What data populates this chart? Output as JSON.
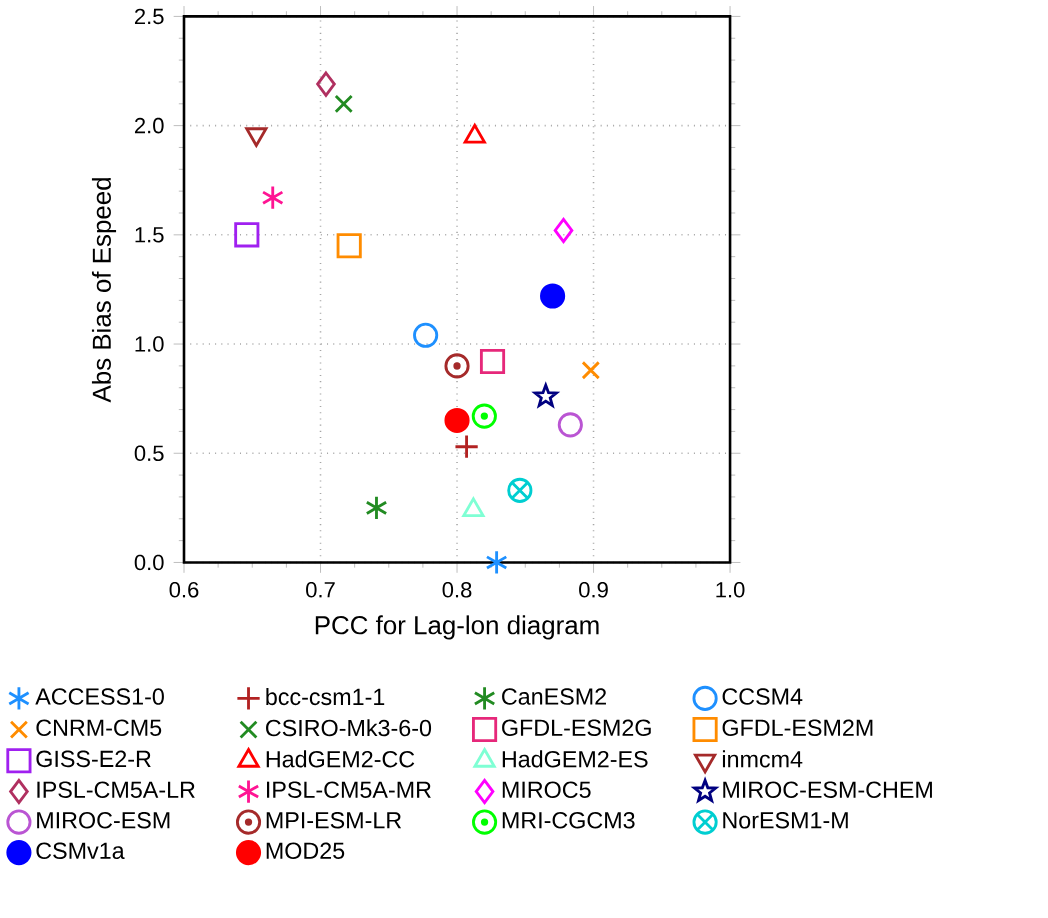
{
  "chart_data": {
    "type": "scatter",
    "xlabel": "PCC for Lag-lon diagram",
    "ylabel": "Abs Bias of Espeed",
    "xlim": [
      0.6,
      1.0
    ],
    "ylim": [
      0,
      2.5
    ],
    "xticks": [
      0.6,
      0.7,
      0.8,
      0.9,
      {
        "value": 1.0,
        "label": "1.0"
      }
    ],
    "yticks": [
      {
        "value": 0,
        "label": "0.0"
      },
      0.5,
      {
        "value": 1.0,
        "label": "1.0"
      },
      1.5,
      {
        "value": 2.0,
        "label": "2.0"
      },
      2.5
    ],
    "grid": true,
    "legend": "bottom",
    "series": [
      {
        "name": "ACCESS1-0",
        "color": "#1e90ff",
        "x": [
          0.829
        ],
        "values": [
          0.0
        ]
      },
      {
        "name": "bcc-csm1-1",
        "color": "#b22222",
        "marker": "plus",
        "x": [
          0.807
        ],
        "values": [
          0.53
        ]
      },
      {
        "name": "CanESM2",
        "color": "#228b22",
        "x": [
          0.741
        ],
        "values": [
          0.25
        ]
      },
      {
        "name": "CCSM4",
        "color": "#1e90ff",
        "marker": "circle",
        "x": [
          0.777
        ],
        "values": [
          1.04
        ]
      },
      {
        "name": "CNRM-CM5",
        "color": "#ff8c00",
        "marker": "x",
        "x": [
          0.898
        ],
        "values": [
          0.88
        ]
      },
      {
        "name": "CSIRO-Mk3-6-0",
        "color": "#228b22",
        "marker": "x",
        "x": [
          0.717
        ],
        "values": [
          2.1
        ]
      },
      {
        "name": "GFDL-ESM2G",
        "color": "#e6287a",
        "marker": "square",
        "x": [
          0.826
        ],
        "values": [
          0.92
        ]
      },
      {
        "name": "GFDL-ESM2M",
        "color": "#ff8c00",
        "marker": "square",
        "x": [
          0.721
        ],
        "values": [
          1.45
        ]
      },
      {
        "name": "GISS-E2-R",
        "color": "#a020f0",
        "marker": "square",
        "x": [
          0.646
        ],
        "values": [
          1.5
        ]
      },
      {
        "name": "HadGEM2-CC",
        "color": "#ff0000",
        "marker": "triangle",
        "x": [
          0.813
        ],
        "values": [
          1.95
        ]
      },
      {
        "name": "HadGEM2-ES",
        "color": "#7fffd4",
        "marker": "triangle",
        "x": [
          0.812
        ],
        "values": [
          0.24
        ]
      },
      {
        "name": "inmcm4",
        "color": "#a52a2a",
        "marker": "triangle-down",
        "x": [
          0.653
        ],
        "values": [
          1.96
        ]
      },
      {
        "name": "IPSL-CM5A-LR",
        "color": "#b03060",
        "marker": "diamond",
        "x": [
          0.704
        ],
        "values": [
          2.19
        ]
      },
      {
        "name": "IPSL-CM5A-MR",
        "color": "#ff1493",
        "x": [
          0.665
        ],
        "values": [
          1.67
        ]
      },
      {
        "name": "MIROC5",
        "color": "#ff00ff",
        "marker": "diamond",
        "x": [
          0.878
        ],
        "values": [
          1.52
        ]
      },
      {
        "name": "MIROC-ESM-CHEM",
        "color": "#000080",
        "marker": "star",
        "x": [
          0.865
        ],
        "values": [
          0.76
        ]
      },
      {
        "name": "MIROC-ESM",
        "color": "#ba55d3",
        "marker": "circle",
        "x": [
          0.883
        ],
        "values": [
          0.63
        ]
      },
      {
        "name": "MPI-ESM-LR",
        "color": "#a52a2a",
        "marker": "circle-dot",
        "x": [
          0.8
        ],
        "values": [
          0.9
        ]
      },
      {
        "name": "MRI-CGCM3",
        "color": "#00ff00",
        "marker": "circle-dot",
        "x": [
          0.82
        ],
        "values": [
          0.67
        ]
      },
      {
        "name": "NorESM1-M",
        "color": "#00ced1",
        "marker": "cross",
        "x": [
          0.846
        ],
        "values": [
          0.33
        ]
      },
      {
        "name": "CSMv1a",
        "color": "#0000ff",
        "marker": "filled-circle",
        "x": [
          0.87
        ],
        "values": [
          1.22
        ]
      },
      {
        "name": "MOD25",
        "color": "#ff0000",
        "marker": "filled-circle",
        "x": [
          0.8
        ],
        "values": [
          0.65
        ]
      }
    ]
  }
}
